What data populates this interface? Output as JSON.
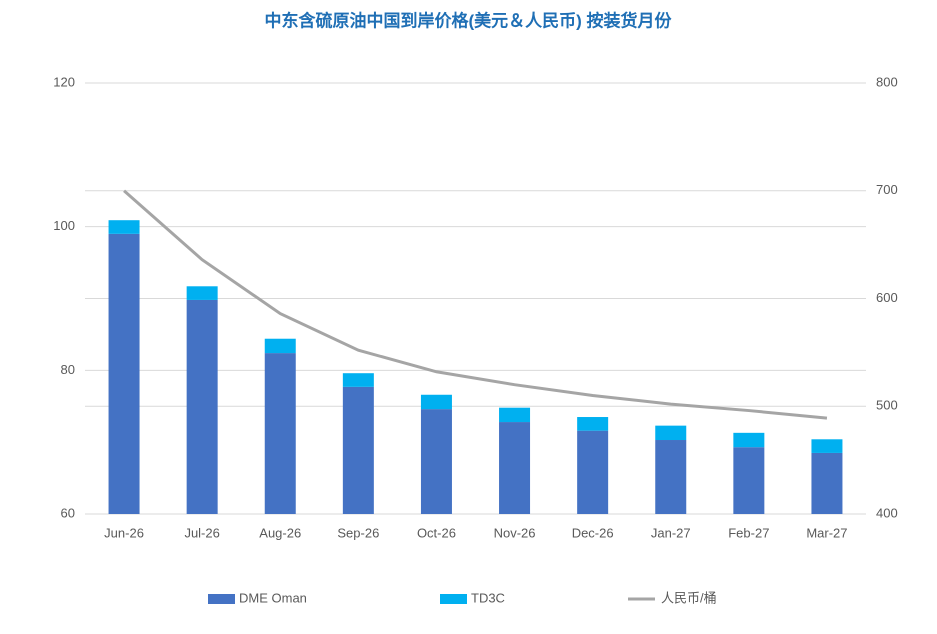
{
  "chart_data": {
    "type": "bar",
    "title": "中东含硫原油中国到岸价格(美元＆人民币) 按装货月份",
    "categories": [
      "Jun-26",
      "Jul-26",
      "Aug-26",
      "Sep-26",
      "Oct-26",
      "Nov-26",
      "Dec-26",
      "Jan-27",
      "Feb-27",
      "Mar-27"
    ],
    "stacked": true,
    "series": [
      {
        "name": "DME Oman",
        "color": "#4472c4",
        "values": [
          99.0,
          89.8,
          82.4,
          77.7,
          74.6,
          72.8,
          71.6,
          70.3,
          69.3,
          68.5
        ]
      },
      {
        "name": "TD3C",
        "color": "#00b0f0",
        "values": [
          1.9,
          1.9,
          2.0,
          1.9,
          2.0,
          2.0,
          1.9,
          2.0,
          2.0,
          1.9
        ]
      },
      {
        "name": "人民币/桶",
        "color": "#a5a5a5",
        "type": "line",
        "axis": "y2",
        "values": [
          700,
          636,
          586,
          552,
          532,
          520,
          510,
          502,
          496,
          489
        ]
      }
    ],
    "ylim": [
      60,
      120
    ],
    "yticks": [
      60,
      80,
      100,
      120
    ],
    "y2lim": [
      400,
      800
    ],
    "y2ticks": [
      400,
      500,
      600,
      700,
      800
    ],
    "grid": true,
    "legend": "bottom"
  }
}
